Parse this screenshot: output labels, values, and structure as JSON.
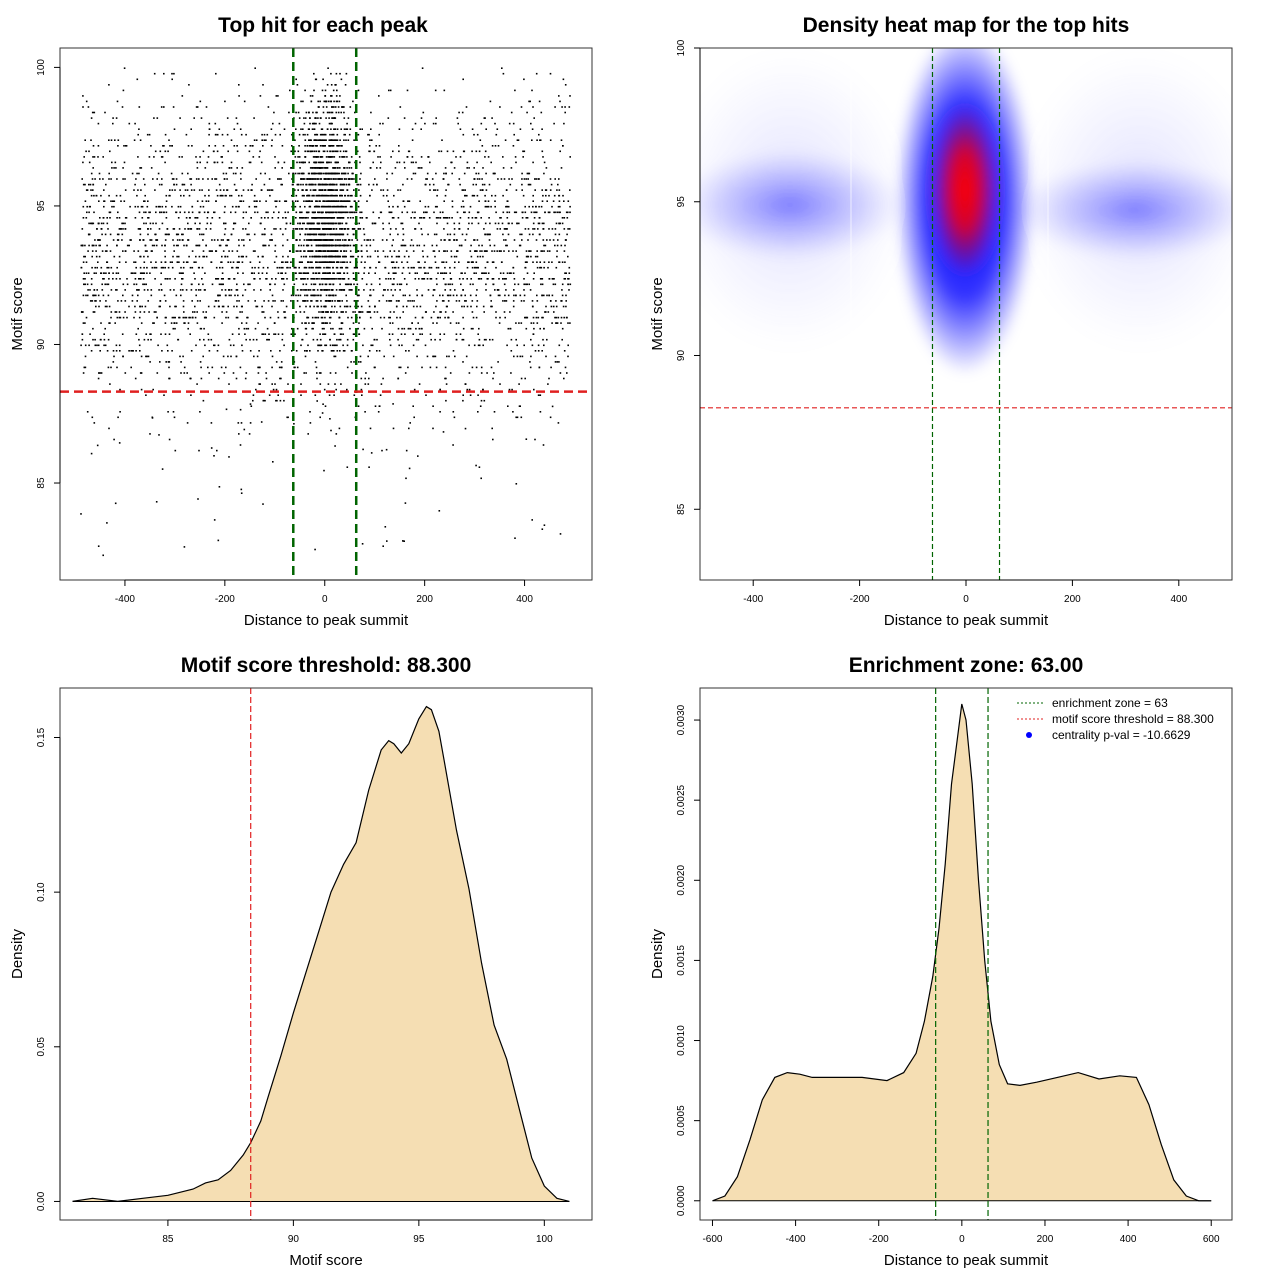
{
  "chart_data": [
    {
      "type": "scatter",
      "title": "Top hit for each peak",
      "xlabel": "Distance to peak summit",
      "ylabel": "Motif score",
      "xlim": [
        -530,
        535
      ],
      "ylim": [
        81.5,
        100.7
      ],
      "xticks": [
        -400,
        -200,
        0,
        200,
        400
      ],
      "yticks": [
        85,
        90,
        95,
        100
      ],
      "threshold": 88.3,
      "zone": [
        -63,
        63
      ],
      "threshold_color": "#e02020",
      "zone_color": "#006400",
      "point_color": "#000000"
    },
    {
      "type": "heatmap",
      "title": "Density heat map for the top hits",
      "xlabel": "Distance to peak summit",
      "ylabel": "Motif score",
      "xlim": [
        -500,
        500
      ],
      "ylim": [
        82.7,
        100
      ],
      "xticks": [
        -400,
        -200,
        0,
        200,
        400
      ],
      "yticks": [
        85,
        90,
        95,
        100
      ],
      "threshold": 88.3,
      "zone": [
        -63,
        63
      ],
      "colors": [
        "#ffffff",
        "#0000ff",
        "#ff0000"
      ],
      "threshold_color": "#e02020",
      "zone_color": "#006400"
    },
    {
      "type": "area",
      "title": "Motif score threshold: 88.300",
      "xlabel": "Motif score",
      "ylabel": "Density",
      "xlim": [
        80.7,
        101.9
      ],
      "ylim": [
        -0.006,
        0.166
      ],
      "xticks": [
        85,
        90,
        95,
        100
      ],
      "yticks": [
        "0.00",
        "0.05",
        "0.10",
        "0.15"
      ],
      "threshold": 88.3,
      "fill_color": "#f5deb3",
      "threshold_color": "#e02020",
      "x": [
        81.2,
        82,
        83,
        84,
        85,
        86,
        86.5,
        87,
        87.5,
        88,
        88.3,
        88.7,
        89,
        89.5,
        90,
        90.5,
        91,
        91.5,
        92,
        92.5,
        93,
        93.5,
        93.8,
        94,
        94.3,
        94.6,
        95,
        95.3,
        95.5,
        95.8,
        96,
        96.5,
        97,
        97.5,
        98,
        98.5,
        99,
        99.5,
        100,
        100.5,
        101
      ],
      "y": [
        0,
        0.001,
        0,
        0.001,
        0.002,
        0.004,
        0.006,
        0.007,
        0.01,
        0.015,
        0.019,
        0.026,
        0.034,
        0.047,
        0.061,
        0.074,
        0.087,
        0.1,
        0.109,
        0.116,
        0.133,
        0.146,
        0.149,
        0.148,
        0.145,
        0.148,
        0.156,
        0.16,
        0.159,
        0.152,
        0.143,
        0.12,
        0.101,
        0.077,
        0.057,
        0.046,
        0.03,
        0.014,
        0.005,
        0.001,
        0
      ]
    },
    {
      "type": "area",
      "title": "Enrichment zone: 63.00",
      "xlabel": "Distance to peak summit",
      "ylabel": "Density",
      "xlim": [
        -630,
        650
      ],
      "ylim": [
        -0.00012,
        0.0032
      ],
      "xticks": [
        -600,
        -400,
        -200,
        0,
        200,
        400,
        600
      ],
      "yticks": [
        "0.0000",
        "0.0005",
        "0.0010",
        "0.0015",
        "0.0020",
        "0.0025",
        "0.0030"
      ],
      "zone": [
        -63,
        63
      ],
      "fill_color": "#f5deb3",
      "zone_color": "#006400",
      "x": [
        -600,
        -570,
        -540,
        -510,
        -480,
        -450,
        -420,
        -390,
        -360,
        -300,
        -240,
        -180,
        -140,
        -110,
        -90,
        -70,
        -55,
        -40,
        -25,
        -10,
        0,
        10,
        25,
        40,
        55,
        70,
        90,
        110,
        140,
        180,
        230,
        280,
        330,
        380,
        420,
        450,
        480,
        510,
        540,
        570,
        600
      ],
      "y": [
        0,
        3e-05,
        0.00015,
        0.00038,
        0.00063,
        0.00077,
        0.0008,
        0.00079,
        0.00077,
        0.00077,
        0.00077,
        0.00075,
        0.0008,
        0.00092,
        0.00112,
        0.0014,
        0.0017,
        0.0021,
        0.0026,
        0.0029,
        0.0031,
        0.003,
        0.0026,
        0.002,
        0.0015,
        0.00112,
        0.00085,
        0.00073,
        0.00072,
        0.00074,
        0.00077,
        0.0008,
        0.00076,
        0.00078,
        0.00077,
        0.0006,
        0.00035,
        0.00013,
        3e-05,
        0,
        0
      ],
      "legend": {
        "placement": "top-right",
        "entries": [
          {
            "label": "enrichment zone = 63",
            "color": "#006400",
            "marker": "dotted-line"
          },
          {
            "label": "motif score threshold = 88.300",
            "color": "#e02020",
            "marker": "dotted-line"
          },
          {
            "label": "centrality p-val = -10.6629",
            "color": "#0000ff",
            "marker": "dot"
          }
        ]
      }
    }
  ]
}
